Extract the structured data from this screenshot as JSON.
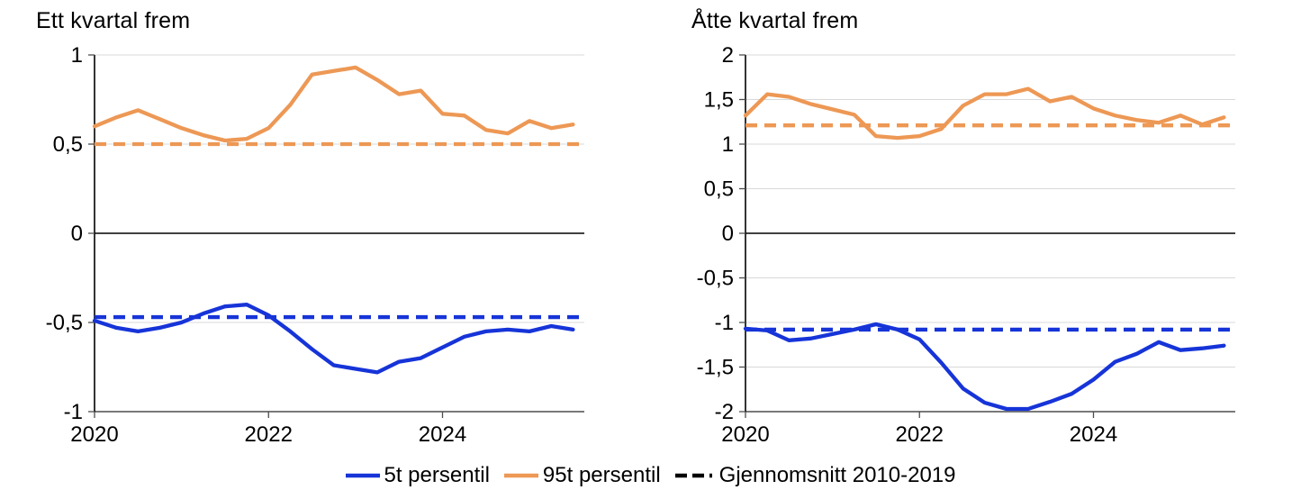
{
  "page": {
    "background": "#ffffff"
  },
  "colors": {
    "blue": "#1634D8",
    "orange": "#ED9855",
    "black": "#000000",
    "grid": "#D9D9D9",
    "zero_line": "#000000",
    "axis_line": "#000000",
    "bottom_axis": "#4D4D4D",
    "tick": "#4D4D4D",
    "text": "#000000"
  },
  "legend": {
    "position": "bottom-center",
    "items": [
      {
        "label": "5t persentil",
        "marker": "solid",
        "color_key": "blue"
      },
      {
        "label": "95t persentil",
        "marker": "solid",
        "color_key": "orange"
      },
      {
        "label": "Gjennomsnitt 2010-2019",
        "marker": "dashed",
        "color_key": "black"
      }
    ]
  },
  "chart_data": [
    {
      "type": "line",
      "title": "Ett kvartal frem",
      "x_start": 2020,
      "x_step": 0.25,
      "x_domain": [
        2020,
        2025.63
      ],
      "x_tick_values": [
        2020,
        2022,
        2024
      ],
      "x_tick_labels": [
        "2020",
        "2022",
        "2024"
      ],
      "ylim": [
        -1,
        1
      ],
      "y_tick_values": [
        1,
        0.5,
        0,
        -0.5,
        -1
      ],
      "y_tick_labels": [
        "1",
        "0,5",
        "0",
        "-0,5",
        "-1"
      ],
      "grid": "on",
      "series": [
        {
          "name": "95t persentil",
          "color_key": "orange",
          "values": [
            0.6,
            0.65,
            0.69,
            0.64,
            0.59,
            0.55,
            0.52,
            0.53,
            0.59,
            0.72,
            0.89,
            0.91,
            0.93,
            0.86,
            0.78,
            0.8,
            0.67,
            0.66,
            0.58,
            0.56,
            0.63,
            0.59,
            0.61
          ]
        },
        {
          "name": "5t persentil",
          "color_key": "blue",
          "values": [
            -0.49,
            -0.53,
            -0.55,
            -0.53,
            -0.5,
            -0.45,
            -0.41,
            -0.4,
            -0.46,
            -0.55,
            -0.65,
            -0.74,
            -0.76,
            -0.78,
            -0.72,
            -0.7,
            -0.64,
            -0.58,
            -0.55,
            -0.54,
            -0.55,
            -0.52,
            -0.54
          ]
        }
      ],
      "mean_lines": [
        {
          "name": "Gjennomsnitt 2010-2019 (95t persentil)",
          "color_key": "orange",
          "value": 0.5
        },
        {
          "name": "Gjennomsnitt 2010-2019 (5t persentil)",
          "color_key": "blue",
          "value": -0.47
        }
      ]
    },
    {
      "type": "line",
      "title": "Åtte kvartal frem",
      "x_start": 2020,
      "x_step": 0.25,
      "x_domain": [
        2020,
        2025.63
      ],
      "x_tick_values": [
        2020,
        2022,
        2024
      ],
      "x_tick_labels": [
        "2020",
        "2022",
        "2024"
      ],
      "ylim": [
        -2,
        2
      ],
      "y_tick_values": [
        2,
        1.5,
        1,
        0.5,
        0,
        -0.5,
        -1,
        -1.5,
        -2
      ],
      "y_tick_labels": [
        "2",
        "1,5",
        "1",
        "0,5",
        "0",
        "-0,5",
        "-1",
        "-1,5",
        "-2"
      ],
      "grid": "on",
      "series": [
        {
          "name": "95t persentil",
          "color_key": "orange",
          "values": [
            1.32,
            1.56,
            1.53,
            1.45,
            1.39,
            1.33,
            1.09,
            1.07,
            1.09,
            1.17,
            1.43,
            1.56,
            1.56,
            1.62,
            1.48,
            1.53,
            1.4,
            1.32,
            1.27,
            1.24,
            1.32,
            1.22,
            1.3
          ]
        },
        {
          "name": "5t persentil",
          "color_key": "blue",
          "values": [
            -1.07,
            -1.09,
            -1.2,
            -1.18,
            -1.13,
            -1.08,
            -1.02,
            -1.08,
            -1.19,
            -1.45,
            -1.74,
            -1.9,
            -1.97,
            -1.97,
            -1.89,
            -1.8,
            -1.64,
            -1.44,
            -1.35,
            -1.22,
            -1.31,
            -1.29,
            -1.26
          ]
        }
      ],
      "mean_lines": [
        {
          "name": "Gjennomsnitt 2010-2019 (95t persentil)",
          "color_key": "orange",
          "value": 1.21
        },
        {
          "name": "Gjennomsnitt 2010-2019 (5t persentil)",
          "color_key": "blue",
          "value": -1.08
        }
      ]
    }
  ]
}
